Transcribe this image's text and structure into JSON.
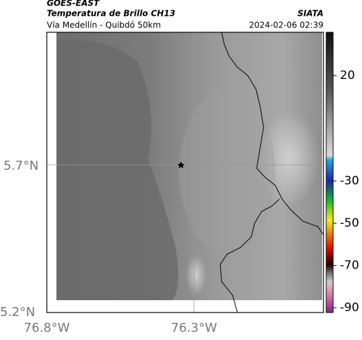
{
  "header": {
    "satellite": "GOES-EAST",
    "product": "Temperatura de Brillo CH13",
    "region": "Vía Medellín - Quibdó 50km",
    "source": "SIATA",
    "timestamp": "2024-02-06 02:39"
  },
  "map": {
    "lat_labels": [
      "5.7°N",
      "5.2°N"
    ],
    "lon_labels": [
      "76.8°W",
      "76.3°W"
    ]
  },
  "colorbar": {
    "ticks": [
      20,
      -30,
      -50,
      -70,
      -90
    ]
  }
}
